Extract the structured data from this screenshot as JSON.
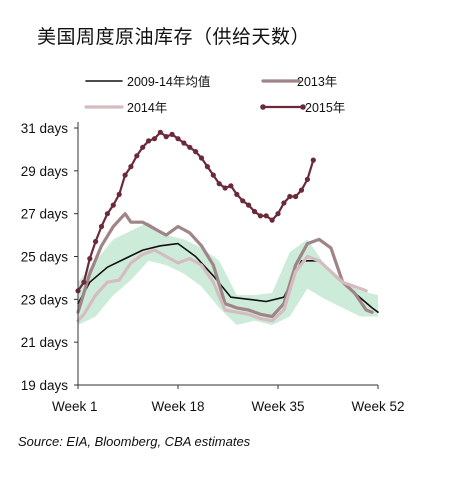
{
  "title": "美国周度原油库存（供给天数）",
  "source": "Source: EIA, Bloomberg, CBA estimates",
  "chart_data": {
    "type": "line",
    "title": "美国周度原油库存（供给天数）",
    "x_unit": "week",
    "xlim": [
      1,
      52
    ],
    "ylim": [
      19,
      31
    ],
    "x_ticks": [
      1,
      18,
      35,
      52
    ],
    "x_tick_labels": [
      "Week 1",
      "Week 18",
      "Week 35",
      "Week 52"
    ],
    "y_ticks": [
      19,
      21,
      23,
      25,
      27,
      29,
      31
    ],
    "y_tick_labels": [
      "19 days",
      "21 days",
      "23 days",
      "25 days",
      "27 days",
      "29 days",
      "31 days"
    ],
    "grid": false,
    "legend_position": "top",
    "band": {
      "color": "#cdebd9",
      "x": [
        1,
        4,
        7,
        10,
        13,
        16,
        19,
        22,
        25,
        28,
        31,
        34,
        37,
        40,
        43,
        46,
        49,
        52
      ],
      "lower": [
        21.8,
        22.2,
        23.2,
        23.9,
        24.8,
        24.6,
        24.2,
        23.6,
        22.6,
        21.8,
        22.0,
        21.8,
        22.2,
        23.5,
        23.0,
        22.6,
        22.2,
        22.2
      ],
      "upper": [
        23.8,
        24.8,
        25.8,
        26.2,
        26.6,
        26.0,
        25.8,
        25.4,
        24.8,
        23.2,
        23.2,
        23.3,
        25.2,
        25.8,
        24.6,
        23.8,
        23.4,
        23.2
      ]
    },
    "series": [
      {
        "name": "2009-14年均值",
        "color": "#111111",
        "width": 1.6,
        "markers": false,
        "x": [
          1,
          3,
          6,
          9,
          12,
          15,
          18,
          21,
          24,
          27,
          30,
          33,
          36,
          39,
          42,
          45,
          48,
          51,
          52
        ],
        "values": [
          22.8,
          23.8,
          24.5,
          24.9,
          25.3,
          25.5,
          25.6,
          25.0,
          24.1,
          23.1,
          23.0,
          22.9,
          23.1,
          24.8,
          24.8,
          24.0,
          23.3,
          22.6,
          22.4
        ]
      },
      {
        "name": "2013年",
        "color": "#a08588",
        "width": 3.2,
        "markers": false,
        "x": [
          1,
          3,
          5,
          7,
          9,
          10,
          12,
          14,
          16,
          18,
          20,
          22,
          24,
          26,
          28,
          30,
          32,
          34,
          36,
          38,
          40,
          42,
          44,
          46,
          48,
          50,
          51
        ],
        "values": [
          22.4,
          24.2,
          25.5,
          26.4,
          27.0,
          26.6,
          26.6,
          26.3,
          26.0,
          26.4,
          26.1,
          25.5,
          24.6,
          22.8,
          22.6,
          22.5,
          22.3,
          22.2,
          22.8,
          24.6,
          25.6,
          25.8,
          25.4,
          23.8,
          23.3,
          22.5,
          22.4
        ]
      },
      {
        "name": "2014年",
        "color": "#d4bcc0",
        "width": 3.2,
        "markers": false,
        "x": [
          1,
          2,
          4,
          6,
          8,
          10,
          12,
          14,
          16,
          18,
          20,
          22,
          24,
          26,
          28,
          30,
          32,
          34,
          36,
          38,
          40,
          42,
          44,
          46,
          48,
          50
        ],
        "values": [
          22.0,
          22.3,
          23.2,
          23.8,
          23.9,
          24.7,
          25.1,
          25.3,
          25.0,
          24.7,
          24.9,
          24.6,
          23.8,
          22.5,
          22.4,
          22.3,
          22.1,
          22.0,
          22.5,
          24.3,
          25.0,
          24.8,
          24.3,
          23.8,
          23.6,
          23.4
        ]
      },
      {
        "name": "2015年",
        "color": "#6b2a3a",
        "width": 2.2,
        "markers": true,
        "x": [
          1,
          2,
          3,
          4,
          5,
          6,
          7,
          8,
          9,
          10,
          11,
          12,
          13,
          14,
          15,
          16,
          17,
          18,
          19,
          20,
          21,
          22,
          23,
          24,
          25,
          26,
          27,
          28,
          29,
          30,
          31,
          32,
          33,
          34,
          35,
          36,
          37,
          38,
          39,
          40,
          41
        ],
        "values": [
          23.4,
          23.8,
          24.9,
          25.7,
          26.4,
          27.0,
          27.4,
          27.9,
          28.8,
          29.2,
          29.7,
          30.1,
          30.4,
          30.5,
          30.8,
          30.6,
          30.7,
          30.5,
          30.3,
          30.1,
          29.9,
          29.6,
          29.2,
          28.8,
          28.4,
          28.2,
          28.3,
          27.9,
          27.6,
          27.4,
          27.1,
          26.9,
          26.9,
          26.7,
          27.0,
          27.5,
          27.8,
          27.8,
          28.1,
          28.6,
          29.5
        ]
      }
    ]
  },
  "legend": {
    "items": [
      {
        "label": "2009-14年均值",
        "color": "#111111",
        "width": 1.6,
        "markers": false
      },
      {
        "label": "2013年",
        "color": "#a08588",
        "width": 3.2,
        "markers": false
      },
      {
        "label": "2014年",
        "color": "#d4bcc0",
        "width": 3.2,
        "markers": false
      },
      {
        "label": "2015年",
        "color": "#6b2a3a",
        "width": 2.2,
        "markers": true
      }
    ]
  }
}
